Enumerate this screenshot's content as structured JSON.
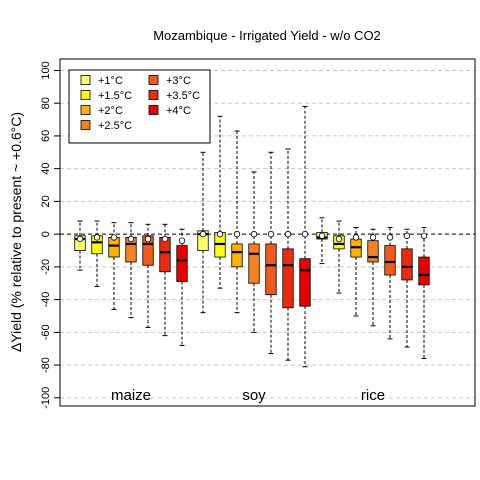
{
  "chart_data": {
    "type": "boxplot",
    "title": "Mozambique - Irrigated Yield - w/o CO2",
    "ylabel": "ΔYield (% relative to present ~ +0.6°C)",
    "ylim": [
      -105,
      107
    ],
    "yticks": [
      -100,
      -80,
      -60,
      -40,
      -20,
      0,
      20,
      40,
      60,
      80,
      100
    ],
    "ytick_labels": [
      "-100",
      "-80",
      "-60",
      "-40",
      "-20",
      "0",
      "20",
      "40",
      "60",
      "80",
      "100"
    ],
    "grid": "horizontal-dashed",
    "reference_line": 0,
    "legend_position": "top-left",
    "series": [
      {
        "name": "+1°C",
        "color": "#FFFF66"
      },
      {
        "name": "+1.5°C",
        "color": "#FFFF00"
      },
      {
        "name": "+2°C",
        "color": "#FFB300"
      },
      {
        "name": "+2.5°C",
        "color": "#F58220"
      },
      {
        "name": "+3°C",
        "color": "#F05A1A"
      },
      {
        "name": "+3.5°C",
        "color": "#EB2A10"
      },
      {
        "name": "+4°C",
        "color": "#E60000"
      }
    ],
    "groups": [
      {
        "label": "maize",
        "boxes": [
          {
            "whisker_low": -22,
            "q1": -10,
            "median": -3,
            "q3": -1,
            "whisker_high": 8,
            "mean": -3
          },
          {
            "whisker_low": -32,
            "q1": -12,
            "median": -5,
            "q3": -1,
            "whisker_high": 8,
            "mean": -2
          },
          {
            "whisker_low": -46,
            "q1": -14,
            "median": -7,
            "q3": -2,
            "whisker_high": 7,
            "mean": -2
          },
          {
            "whisker_low": -51,
            "q1": -17,
            "median": -6,
            "q3": -2,
            "whisker_high": 7,
            "mean": -3
          },
          {
            "whisker_low": -57,
            "q1": -19,
            "median": -6,
            "q3": -1,
            "whisker_high": 6,
            "mean": -3
          },
          {
            "whisker_low": -62,
            "q1": -23,
            "median": -11,
            "q3": -2,
            "whisker_high": 6,
            "mean": -3
          },
          {
            "whisker_low": -68,
            "q1": -29,
            "median": -16,
            "q3": -7,
            "whisker_high": 3,
            "mean": -4
          }
        ]
      },
      {
        "label": "soy",
        "boxes": [
          {
            "whisker_low": -48,
            "q1": -10,
            "median": 0,
            "q3": 2,
            "whisker_high": 50,
            "mean": 0
          },
          {
            "whisker_low": -33,
            "q1": -14,
            "median": -6,
            "q3": 1,
            "whisker_high": 72,
            "mean": 0
          },
          {
            "whisker_low": -48,
            "q1": -20,
            "median": -11,
            "q3": -6,
            "whisker_high": 63,
            "mean": 0
          },
          {
            "whisker_low": -60,
            "q1": -30,
            "median": -12,
            "q3": -6,
            "whisker_high": 38,
            "mean": 0
          },
          {
            "whisker_low": -73,
            "q1": -37,
            "median": -19,
            "q3": -6,
            "whisker_high": 50,
            "mean": 0
          },
          {
            "whisker_low": -77,
            "q1": -45,
            "median": -19,
            "q3": -9,
            "whisker_high": 52,
            "mean": 0
          },
          {
            "whisker_low": -81,
            "q1": -44,
            "median": -22,
            "q3": -15,
            "whisker_high": 78,
            "mean": 0
          }
        ]
      },
      {
        "label": "rice",
        "boxes": [
          {
            "whisker_low": -18,
            "q1": -3,
            "median": -2,
            "q3": 1,
            "whisker_high": 10,
            "mean": -1
          },
          {
            "whisker_low": -36,
            "q1": -9,
            "median": -6,
            "q3": -1,
            "whisker_high": 8,
            "mean": -3
          },
          {
            "whisker_low": -50,
            "q1": -14,
            "median": -8,
            "q3": -3,
            "whisker_high": 4,
            "mean": -2
          },
          {
            "whisker_low": -56,
            "q1": -17,
            "median": -14,
            "q3": -4,
            "whisker_high": 3,
            "mean": -2
          },
          {
            "whisker_low": -64,
            "q1": -25,
            "median": -17,
            "q3": -7,
            "whisker_high": 4,
            "mean": -2
          },
          {
            "whisker_low": -69,
            "q1": -28,
            "median": -20,
            "q3": -9,
            "whisker_high": 3,
            "mean": -1
          },
          {
            "whisker_low": -76,
            "q1": -31,
            "median": -25,
            "q3": -14,
            "whisker_high": 4,
            "mean": -1
          }
        ]
      }
    ]
  }
}
